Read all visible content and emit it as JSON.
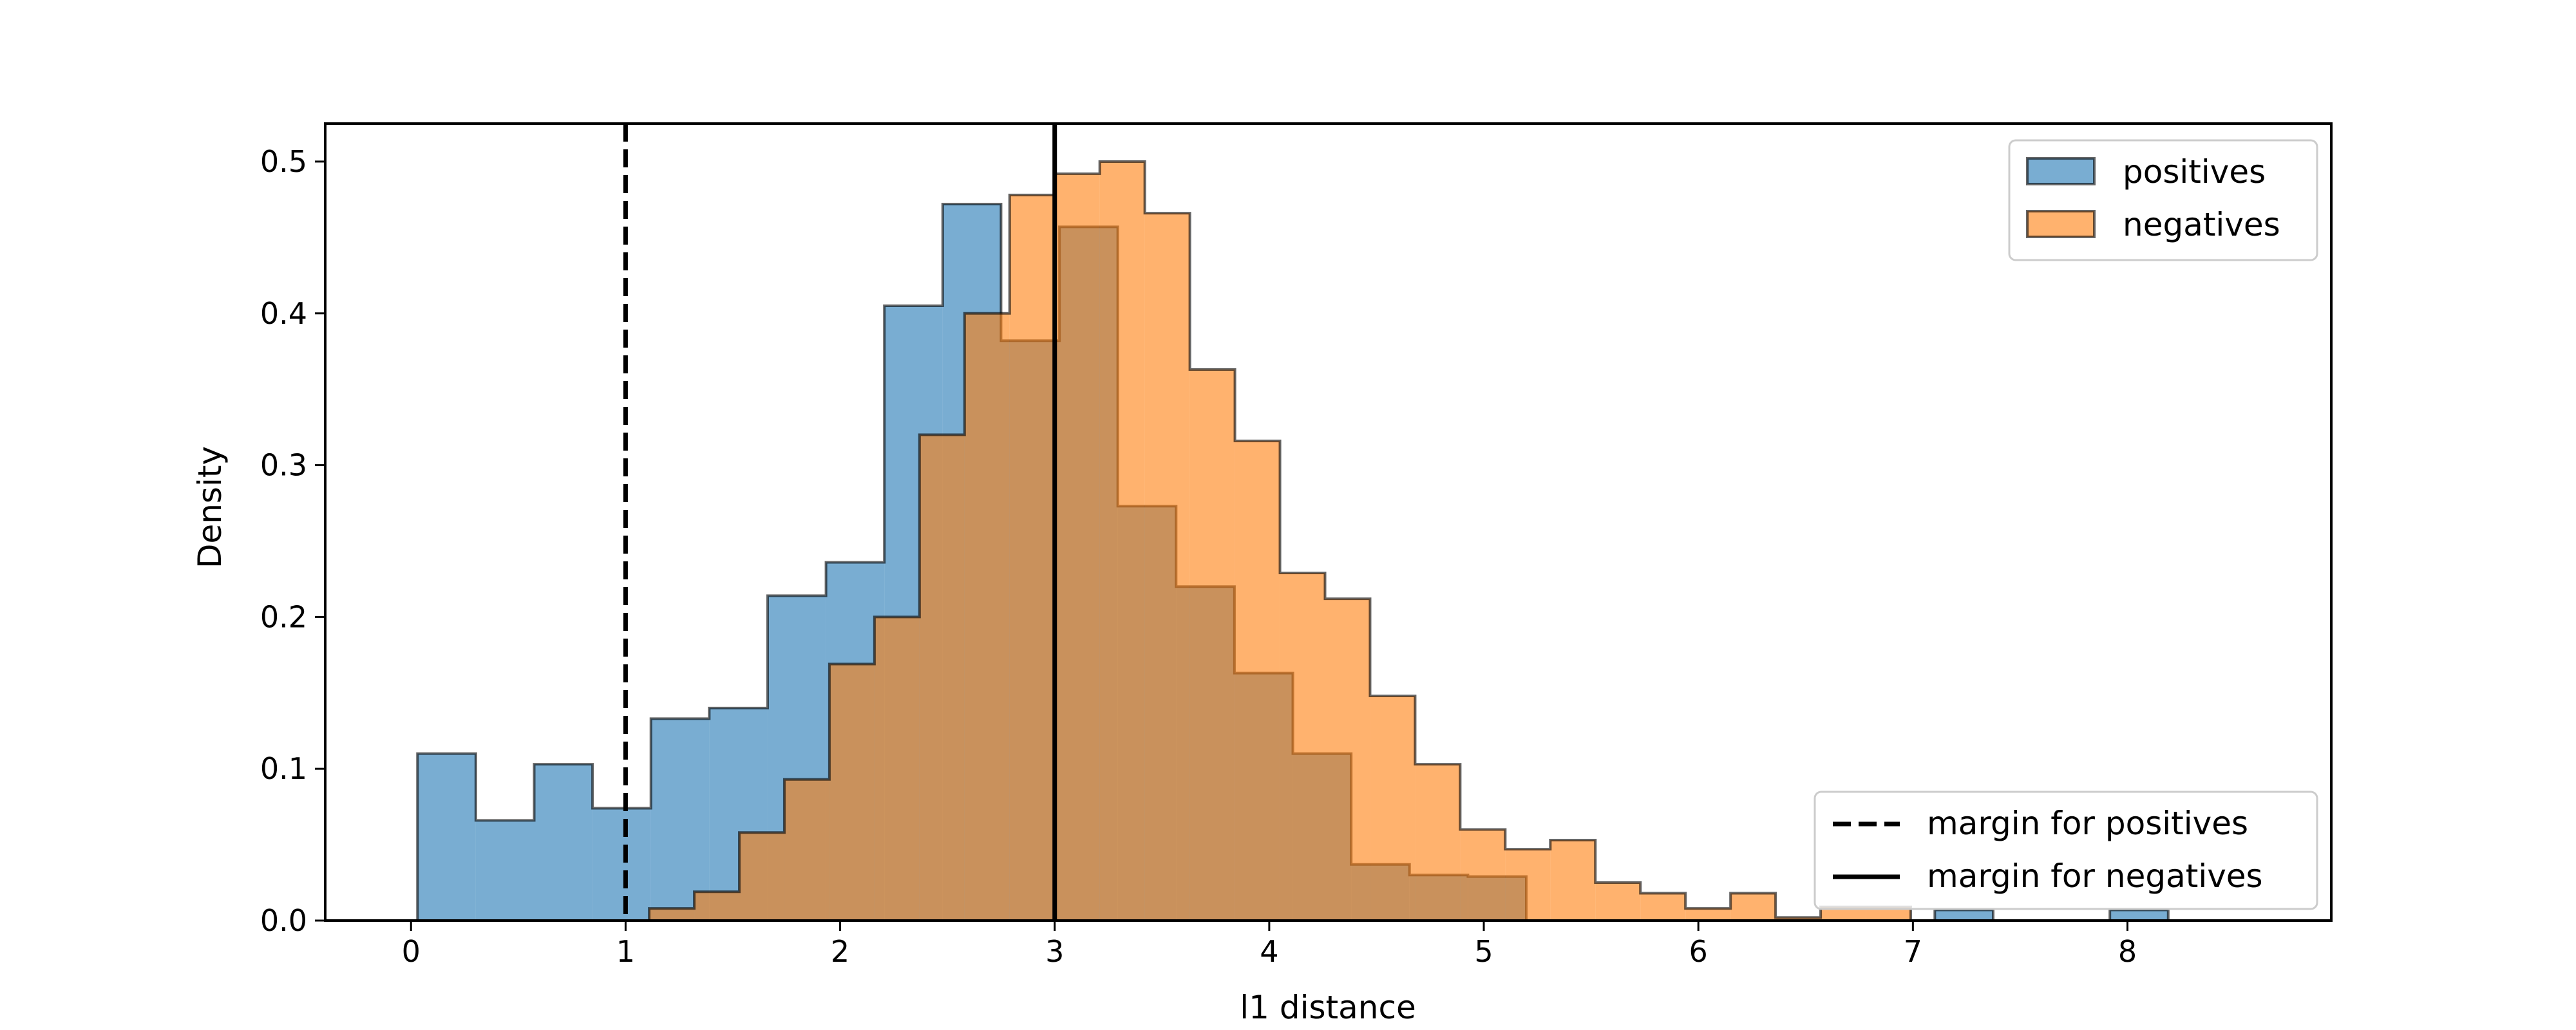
{
  "chart_data": {
    "type": "histogram",
    "title": "",
    "xlabel": "l1 distance",
    "ylabel": "Density",
    "xlim": [
      -0.4,
      8.95
    ],
    "ylim": [
      0,
      0.525
    ],
    "xticks": [
      0,
      1,
      2,
      3,
      4,
      5,
      6,
      7,
      8
    ],
    "xtick_labels": [
      "0",
      "1",
      "2",
      "3",
      "4",
      "5",
      "6",
      "7",
      "8"
    ],
    "yticks": [
      0.0,
      0.1,
      0.2,
      0.3,
      0.4,
      0.5
    ],
    "ytick_labels": [
      "0.0",
      "0.1",
      "0.2",
      "0.3",
      "0.4",
      "0.5"
    ],
    "grid": false,
    "series": [
      {
        "name": "positives",
        "color": "#1f77b4",
        "alpha": 0.6,
        "bin_edges": [
          0.03,
          0.302,
          0.574,
          0.846,
          1.118,
          1.39,
          1.662,
          1.934,
          2.206,
          2.478,
          2.75,
          3.022,
          3.294,
          3.566,
          3.838,
          4.11,
          4.382,
          4.654,
          4.926,
          5.198,
          5.47,
          5.742,
          6.014,
          6.286,
          6.558,
          6.83,
          7.102,
          7.374,
          7.646,
          7.918,
          8.19
        ],
        "densities": [
          0.11,
          0.066,
          0.103,
          0.074,
          0.133,
          0.14,
          0.214,
          0.236,
          0.405,
          0.472,
          0.382,
          0.457,
          0.273,
          0.22,
          0.163,
          0.11,
          0.037,
          0.03,
          0.029,
          0.0,
          0.0,
          0.0,
          0.0,
          0.0,
          0.0,
          0.0,
          0.007,
          0.0,
          0.0,
          0.007
        ]
      },
      {
        "name": "negatives",
        "color": "#ff7f0e",
        "alpha": 0.6,
        "bin_edges": [
          1.11,
          1.32,
          1.53,
          1.74,
          1.95,
          2.16,
          2.37,
          2.58,
          2.79,
          3.0,
          3.21,
          3.42,
          3.63,
          3.84,
          4.05,
          4.26,
          4.47,
          4.68,
          4.89,
          5.1,
          5.31,
          5.52,
          5.73,
          5.94,
          6.15,
          6.36,
          6.57,
          6.78,
          6.99
        ],
        "densities": [
          0.008,
          0.019,
          0.058,
          0.093,
          0.169,
          0.2,
          0.32,
          0.4,
          0.478,
          0.492,
          0.5,
          0.466,
          0.363,
          0.316,
          0.229,
          0.212,
          0.148,
          0.103,
          0.06,
          0.047,
          0.053,
          0.025,
          0.018,
          0.008,
          0.018,
          0.002,
          0.009,
          0.009
        ]
      }
    ],
    "vlines": [
      {
        "label": "margin for positives",
        "x": 1,
        "style": "dashed",
        "color": "#000000"
      },
      {
        "label": "margin for negatives",
        "x": 3,
        "style": "solid",
        "color": "#000000"
      }
    ],
    "legends": [
      {
        "placement": "upper right",
        "entries": [
          "positives",
          "negatives"
        ]
      },
      {
        "placement": "lower right",
        "entries": [
          "margin for positives",
          "margin for negatives"
        ]
      }
    ]
  }
}
